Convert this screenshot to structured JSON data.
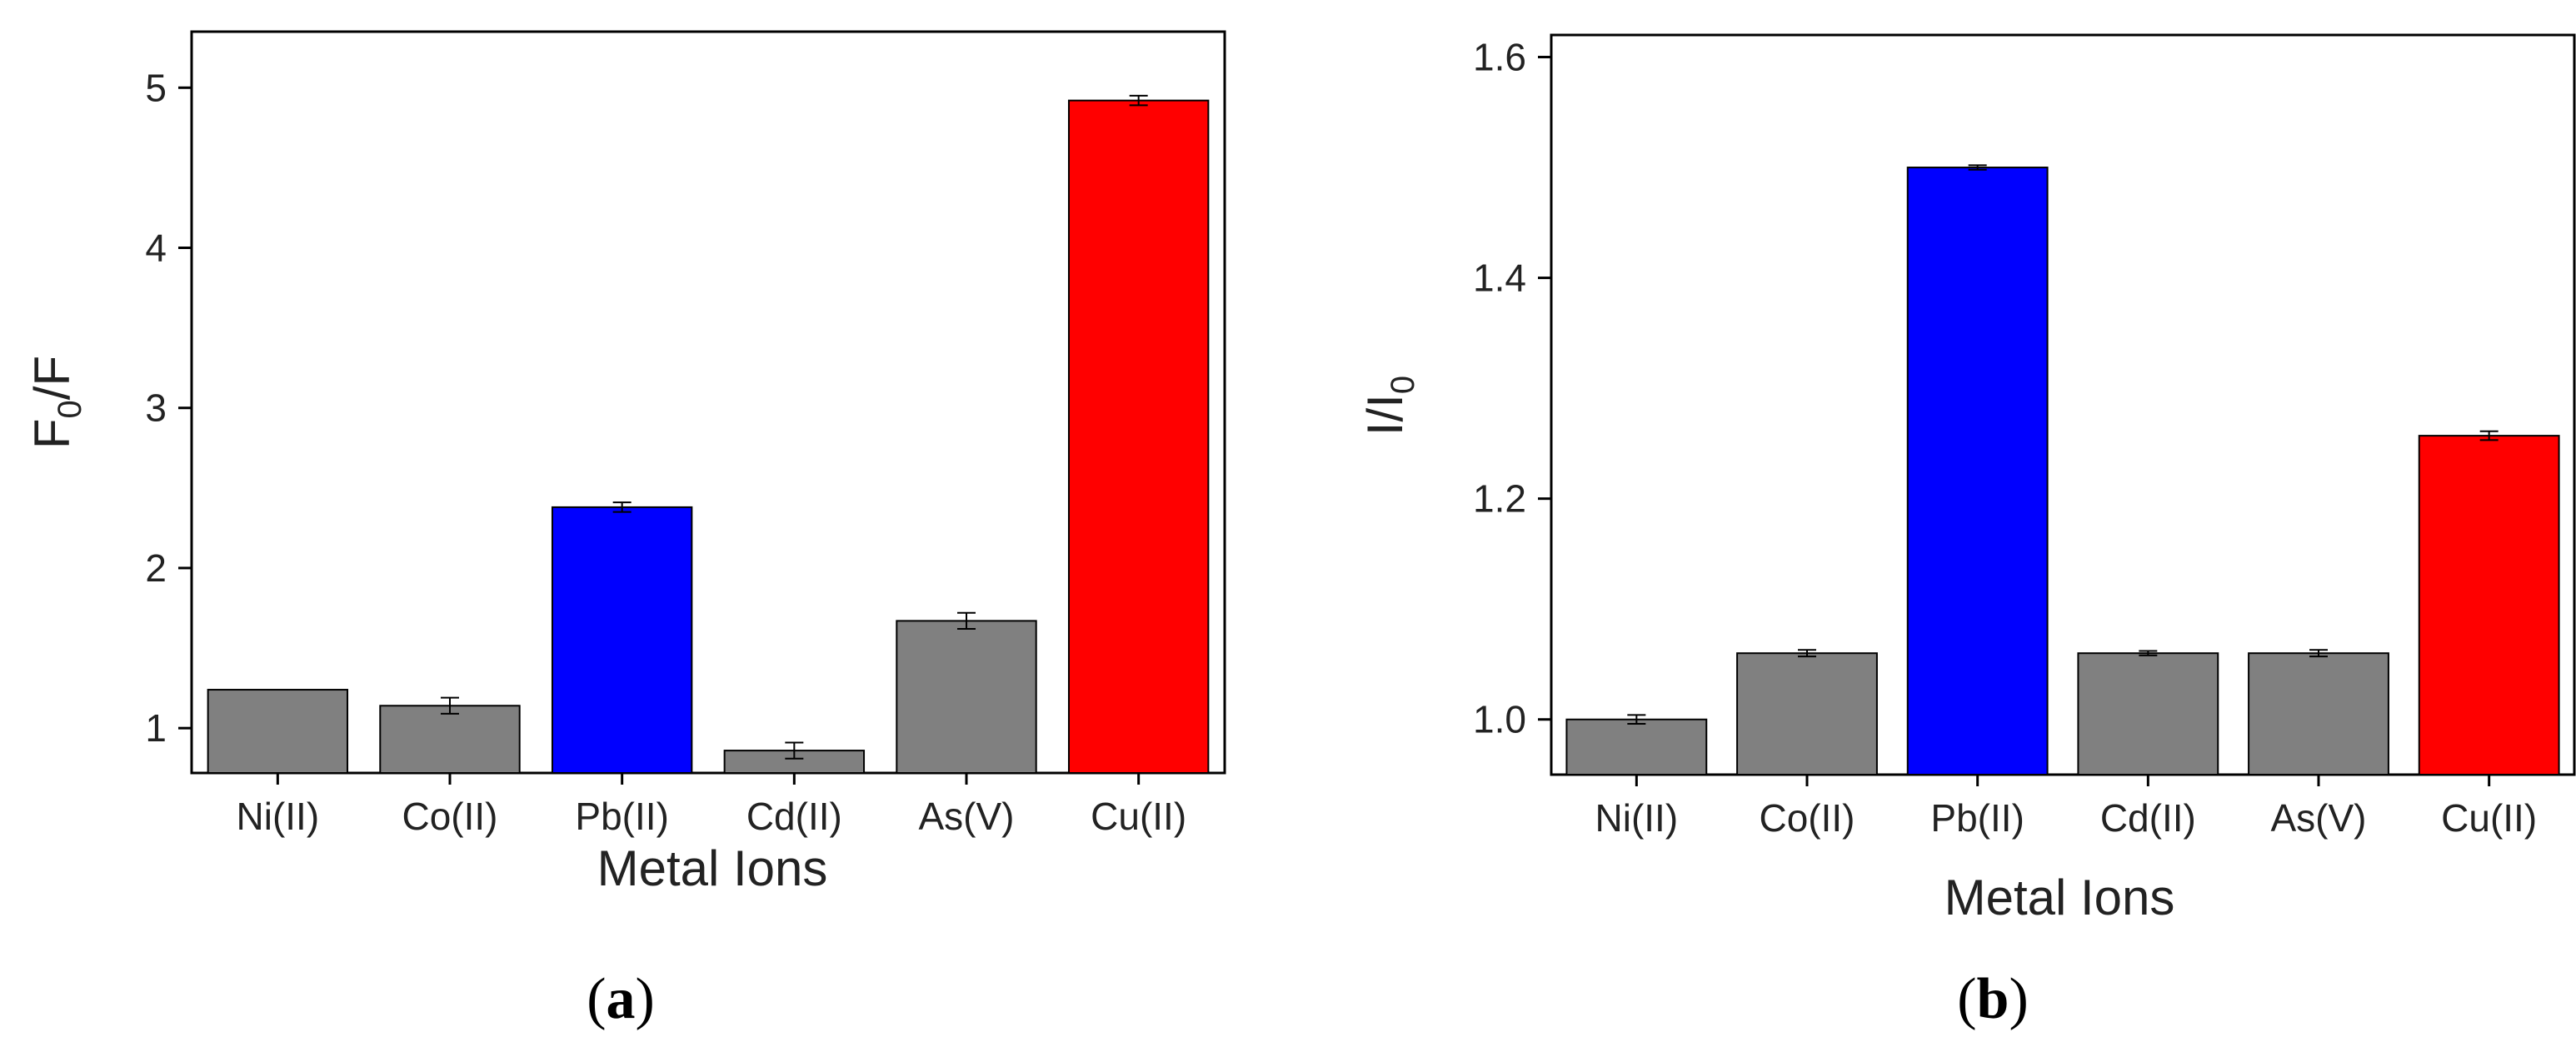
{
  "chart_data": [
    {
      "type": "bar",
      "panel_label": {
        "open": "(",
        "letter": "a",
        "close": ")"
      },
      "categories": [
        "Ni(II)",
        "Co(II)",
        "Pb(II)",
        "Cd(II)",
        "As(V)",
        "Cu(II)"
      ],
      "values": [
        1.24,
        1.14,
        2.38,
        0.86,
        1.67,
        4.92
      ],
      "errors": [
        0.0,
        0.05,
        0.03,
        0.05,
        0.05,
        0.03
      ],
      "colors": [
        "#808080",
        "#808080",
        "#0000ff",
        "#808080",
        "#808080",
        "#ff0000"
      ],
      "xlabel": "Metal Ions",
      "ylabel": {
        "main": "F",
        "sub": "0",
        "rest": "/F"
      },
      "ylim": [
        0.72,
        5.35
      ],
      "yticks": [
        1,
        2,
        3,
        4,
        5
      ],
      "ytick_labels": [
        "1",
        "2",
        "3",
        "4",
        "5"
      ]
    },
    {
      "type": "bar",
      "panel_label": {
        "open": "(",
        "letter": "b",
        "close": ")"
      },
      "categories": [
        "Ni(II)",
        "Co(II)",
        "Pb(II)",
        "Cd(II)",
        "As(V)",
        "Cu(II)"
      ],
      "values": [
        1.0,
        1.06,
        1.5,
        1.06,
        1.06,
        1.257
      ],
      "errors": [
        0.004,
        0.003,
        0.002,
        0.002,
        0.003,
        0.004
      ],
      "colors": [
        "#808080",
        "#808080",
        "#0000ff",
        "#808080",
        "#808080",
        "#ff0000"
      ],
      "xlabel": "Metal Ions",
      "ylabel": {
        "main": "I/I",
        "sub": "0",
        "rest": ""
      },
      "ylim": [
        0.95,
        1.62
      ],
      "yticks": [
        1.0,
        1.2,
        1.4,
        1.6
      ],
      "ytick_labels": [
        "1.0",
        "1.2",
        "1.4",
        "1.6"
      ]
    }
  ]
}
